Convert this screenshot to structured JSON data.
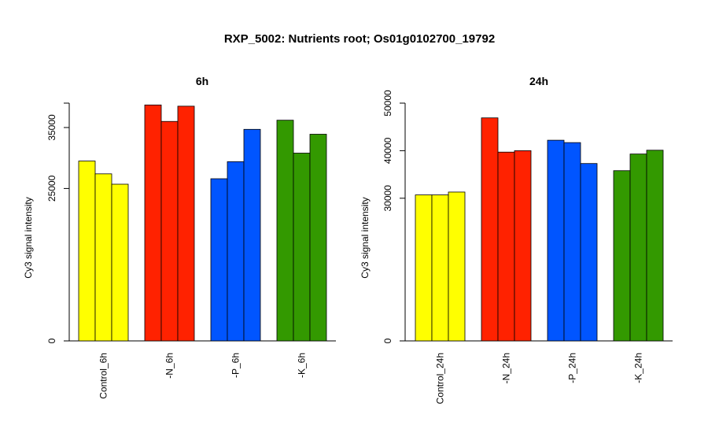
{
  "title": "RXP_5002: Nutrients root; Os01g0102700_19792",
  "chart_data": [
    {
      "type": "bar",
      "title": "6h",
      "ylabel": "Cy3 signal intensity",
      "ylim": [
        0,
        39000
      ],
      "yticks": [
        0,
        25000,
        35000
      ],
      "categories": [
        "Control_6h",
        "-N_6h",
        "-P_6h",
        "-K_6h"
      ],
      "groups": [
        {
          "label": "Control_6h",
          "color": "#ffff00",
          "values": [
            29500,
            27400,
            25700
          ]
        },
        {
          "label": "-N_6h",
          "color": "#ff2200",
          "values": [
            38700,
            36000,
            38500
          ]
        },
        {
          "label": "-P_6h",
          "color": "#0055ff",
          "values": [
            26600,
            29400,
            34700
          ]
        },
        {
          "label": "-K_6h",
          "color": "#339900",
          "values": [
            36200,
            30800,
            33900
          ]
        }
      ]
    },
    {
      "type": "bar",
      "title": "24h",
      "ylabel": "Cy3 signal intensity",
      "ylim": [
        0,
        50000
      ],
      "yticks": [
        0,
        30000,
        40000,
        50000
      ],
      "categories": [
        "Control_24h",
        "-N_24h",
        "-P_24h",
        "-K_24h"
      ],
      "groups": [
        {
          "label": "Control_24h",
          "color": "#ffff00",
          "values": [
            30700,
            30700,
            31300
          ]
        },
        {
          "label": "-N_24h",
          "color": "#ff2200",
          "values": [
            46900,
            39700,
            40000
          ]
        },
        {
          "label": "-P_24h",
          "color": "#0055ff",
          "values": [
            42200,
            41700,
            37300
          ]
        },
        {
          "label": "-K_24h",
          "color": "#339900",
          "values": [
            35800,
            39300,
            40100
          ]
        }
      ]
    }
  ]
}
